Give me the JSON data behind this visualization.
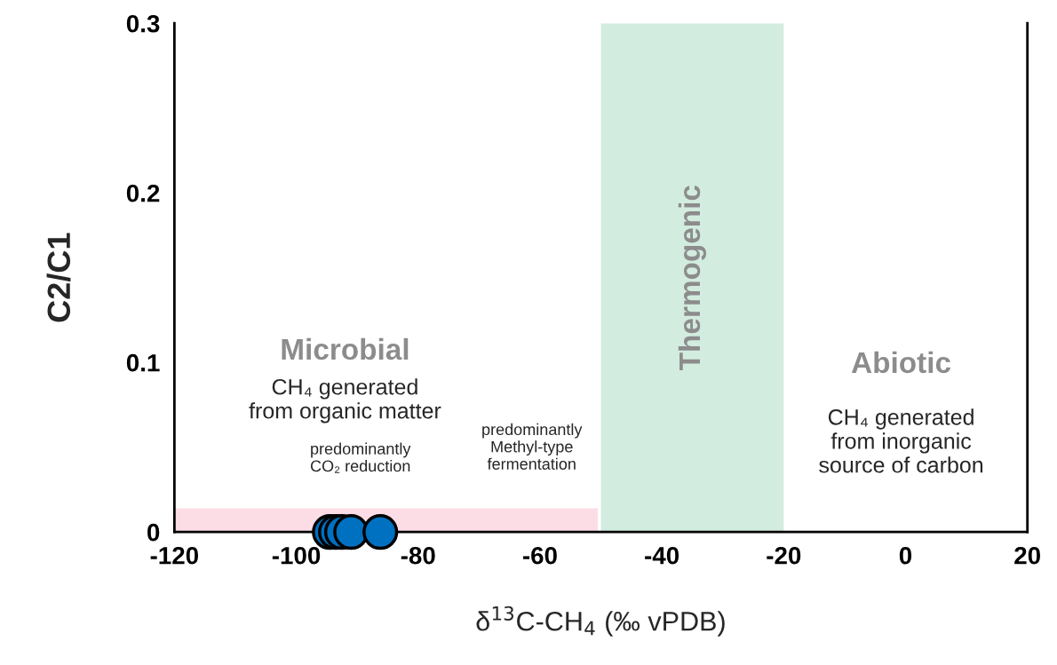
{
  "chart_data": {
    "type": "scatter",
    "xlabel": "δ$^{13}$C-CH$_{4}$ (‰ vPDB)",
    "ylabel": "C2/C1",
    "xlim": [
      -120,
      20
    ],
    "xticks": [
      -120,
      -100,
      -80,
      -60,
      -40,
      -20,
      0,
      20
    ],
    "ylim": [
      0,
      0.3
    ],
    "yticks": [
      0,
      0.1,
      0.2,
      0.3
    ],
    "grid": false,
    "legend": false,
    "series": [
      {
        "type": "area",
        "color": "#fcdde6",
        "x": [
          -120,
          -50.5
        ],
        "values": [
          0.014,
          0.014
        ]
      },
      {
        "color": "#0070c0",
        "marker": "circle",
        "x": [
          -94.5,
          -93.5,
          -92.5,
          -91,
          -86.2
        ],
        "values": [
          0,
          0,
          0,
          0,
          0
        ]
      }
    ],
    "bands": [
      {
        "axis": "x",
        "from": -50,
        "to": -20,
        "label": "Thermogenic",
        "color": "#d3ece0"
      }
    ],
    "annotations": [
      "Microbial",
      "CH₄ generated\nfrom organic matter",
      "predominantly\nCO₂ reduction",
      "predominantly\nMethyl-type\nfermentation",
      "Abiotic",
      "CH₄ generated\nfrom inorganic\nsource of carbon"
    ]
  }
}
